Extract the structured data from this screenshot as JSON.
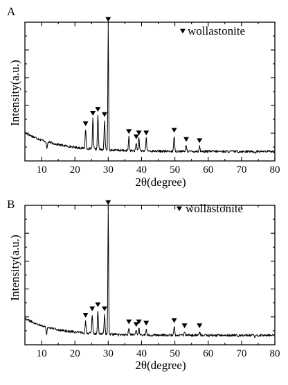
{
  "chart_data": [
    {
      "type": "line",
      "panel_label": "A",
      "xlabel": "2θ(degree)",
      "ylabel": "Intensity(a.u.)",
      "xlim": [
        5,
        80
      ],
      "x_ticks": [
        10,
        20,
        30,
        40,
        50,
        60,
        70,
        80
      ],
      "y_tick_labels": "none",
      "legend": {
        "label": "wollastonite",
        "marker": "down-triangle",
        "placement": "top-right"
      },
      "series": [
        {
          "marker_peaks": [
            {
              "x": 23.2,
              "y": 0.2
            },
            {
              "x": 25.4,
              "y": 0.28
            },
            {
              "x": 26.9,
              "y": 0.31
            },
            {
              "x": 28.9,
              "y": 0.27
            },
            {
              "x": 30.0,
              "y": 1.0
            },
            {
              "x": 36.2,
              "y": 0.14
            },
            {
              "x": 38.4,
              "y": 0.1
            },
            {
              "x": 39.2,
              "y": 0.13
            },
            {
              "x": 41.4,
              "y": 0.13
            },
            {
              "x": 49.8,
              "y": 0.15
            },
            {
              "x": 53.4,
              "y": 0.08
            },
            {
              "x": 57.4,
              "y": 0.07
            }
          ],
          "minor_peaks": [
            {
              "x": 11.6,
              "y": 0.05
            },
            {
              "x": 33.0,
              "y": 0.04
            },
            {
              "x": 45.0,
              "y": 0.03
            },
            {
              "x": 47.6,
              "y": 0.03
            },
            {
              "x": 60.4,
              "y": 0.03
            },
            {
              "x": 62.4,
              "y": 0.03
            },
            {
              "x": 64.6,
              "y": 0.03
            },
            {
              "x": 69.0,
              "y": 0.025
            },
            {
              "x": 74.0,
              "y": 0.02
            }
          ],
          "baseline": {
            "start": 0.175,
            "end": 0.03,
            "decay": 10
          }
        }
      ]
    },
    {
      "type": "line",
      "panel_label": "B",
      "xlabel": "2θ(degree)",
      "ylabel": "Intensity(a.u.)",
      "xlim": [
        5,
        80
      ],
      "x_ticks": [
        10,
        20,
        30,
        40,
        50,
        60,
        70,
        80
      ],
      "y_tick_labels": "none",
      "legend": {
        "label": "wollastonite",
        "marker": "down-triangle",
        "placement": "top-right"
      },
      "series": [
        {
          "marker_peaks": [
            {
              "x": 23.2,
              "y": 0.14
            },
            {
              "x": 25.2,
              "y": 0.19
            },
            {
              "x": 26.9,
              "y": 0.22
            },
            {
              "x": 28.9,
              "y": 0.19
            },
            {
              "x": 30.0,
              "y": 1.0
            },
            {
              "x": 36.2,
              "y": 0.09
            },
            {
              "x": 38.4,
              "y": 0.07
            },
            {
              "x": 39.2,
              "y": 0.09
            },
            {
              "x": 41.4,
              "y": 0.08
            },
            {
              "x": 49.8,
              "y": 0.1
            },
            {
              "x": 52.9,
              "y": 0.06
            },
            {
              "x": 57.4,
              "y": 0.06
            }
          ],
          "minor_peaks": [
            {
              "x": 11.5,
              "y": 0.04
            },
            {
              "x": 33.0,
              "y": 0.03
            },
            {
              "x": 45.0,
              "y": 0.03
            },
            {
              "x": 47.6,
              "y": 0.025
            },
            {
              "x": 56.4,
              "y": 0.03
            },
            {
              "x": 60.4,
              "y": 0.025
            },
            {
              "x": 62.4,
              "y": 0.025
            },
            {
              "x": 64.6,
              "y": 0.025
            },
            {
              "x": 69.0,
              "y": 0.02
            },
            {
              "x": 74.0,
              "y": 0.015
            }
          ],
          "baseline": {
            "start": 0.16,
            "end": 0.03,
            "decay": 9
          }
        }
      ]
    }
  ]
}
